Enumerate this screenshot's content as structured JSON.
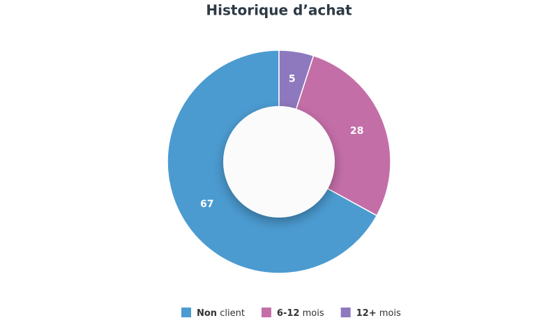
{
  "chart_data": {
    "type": "pie",
    "title": "Historique d’achat",
    "categories": [
      "Non client",
      "6-12 mois",
      "12+ mois"
    ],
    "values": [
      67,
      28,
      5
    ],
    "colors": [
      "#4b9bd1",
      "#c46ea8",
      "#8e78be"
    ]
  }
}
